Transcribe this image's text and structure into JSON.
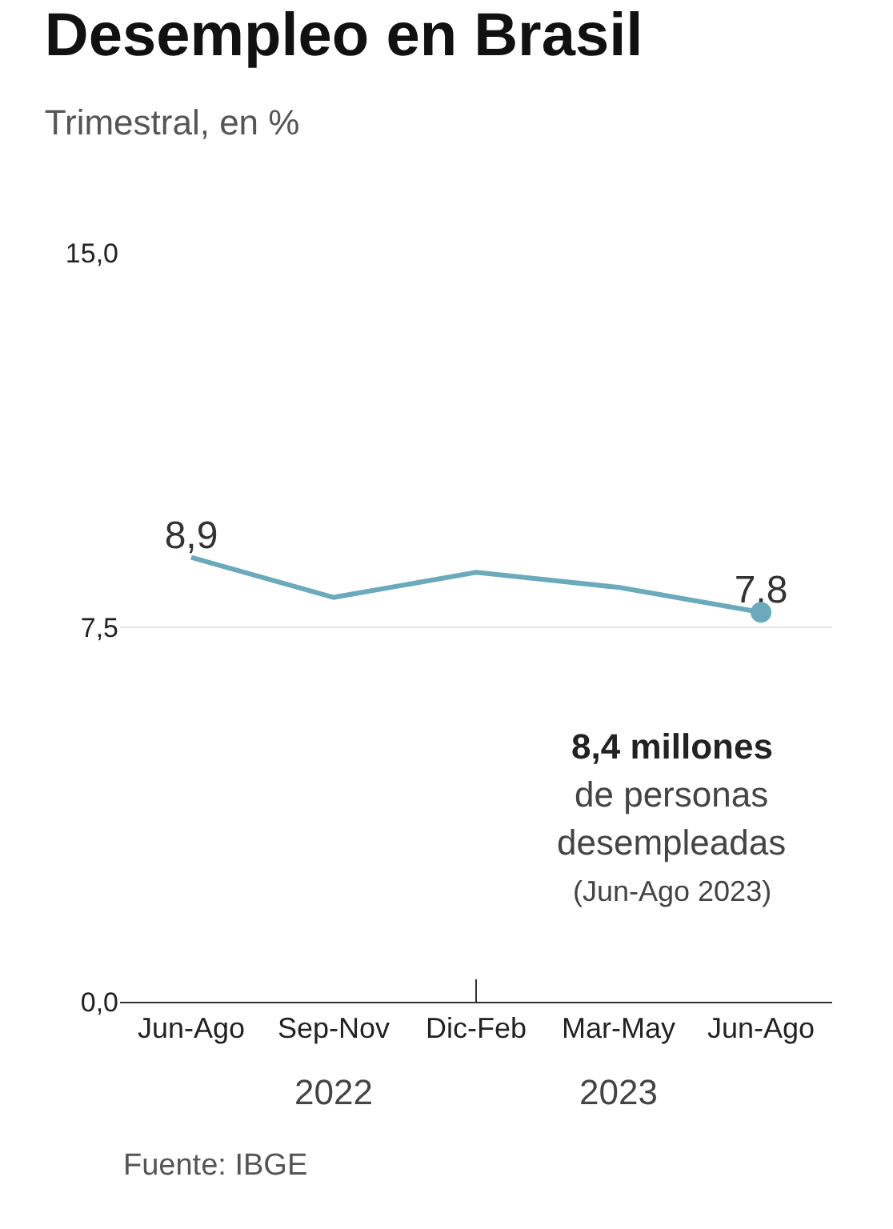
{
  "chart_data": {
    "type": "line",
    "title": "Desempleo en Brasil",
    "subtitle": "Trimestral, en %",
    "categories": [
      "Jun-Ago",
      "Sep-Nov",
      "Dic-Feb",
      "Mar-May",
      "Jun-Ago"
    ],
    "series": [
      {
        "color": "#6aaabb",
        "values": [
          8.9,
          8.1,
          8.6,
          8.3,
          7.8
        ],
        "value_labels": [
          "8,9",
          null,
          null,
          null,
          "7,8"
        ]
      },
      {
        "type": "scatter",
        "marker": "circle",
        "color": "#6aaabb",
        "values": [
          null,
          null,
          null,
          null,
          7.8
        ]
      }
    ],
    "ylim": [
      0,
      15
    ],
    "yticks": [
      {
        "value": 0,
        "label": "0,0"
      },
      {
        "value": 7.5,
        "label": "7,5"
      },
      {
        "value": 15,
        "label": "15,0"
      }
    ],
    "grid": "y",
    "line_style": "solid",
    "annotations": [
      "8,4 millones",
      "de personas",
      "desempleadas",
      "(Jun-Ago 2023)",
      "2022",
      "2023",
      "Fuente: IBGE"
    ]
  }
}
